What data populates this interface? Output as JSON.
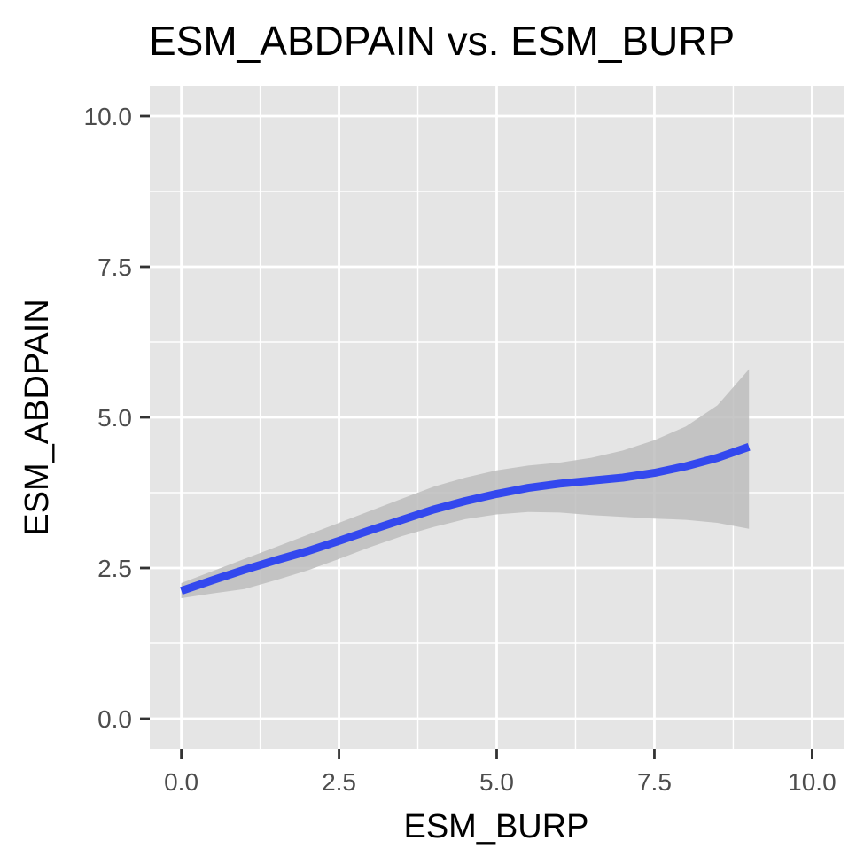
{
  "chart_data": {
    "type": "line",
    "title": "ESM_ABDPAIN vs. ESM_BURP",
    "xlabel": "ESM_BURP",
    "ylabel": "ESM_ABDPAIN",
    "xlim": [
      -0.5,
      10.5
    ],
    "ylim": [
      -0.5,
      10.5
    ],
    "x_ticks": [
      "0.0",
      "2.5",
      "5.0",
      "7.5",
      "10.0"
    ],
    "y_ticks": [
      "0.0",
      "2.5",
      "5.0",
      "7.5",
      "10.0"
    ],
    "grid": true,
    "colors": {
      "panel": "#e5e5e5",
      "grid": "#ffffff",
      "line": "#3348ee",
      "ribbon": "#bdbdbd"
    },
    "series": [
      {
        "x": [
          0,
          0.5,
          1,
          1.5,
          2,
          2.5,
          3,
          3.5,
          4,
          4.5,
          5,
          5.5,
          6,
          6.5,
          7,
          7.5,
          8,
          8.5,
          9
        ],
        "values": [
          2.12,
          2.3,
          2.47,
          2.63,
          2.78,
          2.95,
          3.13,
          3.3,
          3.47,
          3.61,
          3.73,
          3.83,
          3.9,
          3.95,
          4.0,
          4.08,
          4.19,
          4.33,
          4.51
        ],
        "lower": [
          2.0,
          2.08,
          2.15,
          2.3,
          2.46,
          2.65,
          2.85,
          3.03,
          3.18,
          3.31,
          3.39,
          3.43,
          3.42,
          3.38,
          3.35,
          3.32,
          3.3,
          3.25,
          3.15
        ],
        "upper": [
          2.25,
          2.45,
          2.65,
          2.85,
          3.05,
          3.25,
          3.45,
          3.65,
          3.85,
          4.0,
          4.12,
          4.2,
          4.25,
          4.33,
          4.45,
          4.62,
          4.85,
          5.2,
          5.8
        ]
      }
    ]
  }
}
